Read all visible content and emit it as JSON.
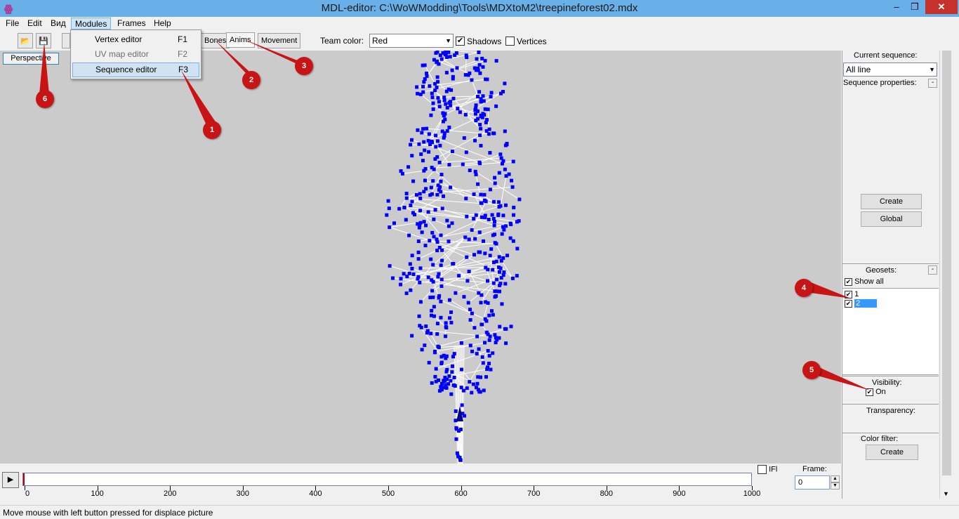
{
  "window": {
    "title": "MDL-editor: C:\\WoWModding\\Tools\\MDXtoM2\\treepineforest02.mdx",
    "app_icon": "ꙮ",
    "minimize_glyph": "–",
    "maximize_glyph": "❐",
    "close_glyph": "✕"
  },
  "menubar": {
    "items": [
      "File",
      "Edit",
      "Вид",
      "Modules",
      "Frames",
      "Help"
    ],
    "active": "Modules"
  },
  "modules_menu": {
    "items": [
      {
        "label": "Vertex editor",
        "key": "F1",
        "state": "normal"
      },
      {
        "label": "UV map editor",
        "key": "F2",
        "state": "disabled"
      },
      {
        "label": "Sequence editor",
        "key": "F3",
        "state": "highlighted"
      }
    ]
  },
  "toolbar": {
    "open_icon": "📂",
    "save_icon": "💾",
    "tabs": [
      "Bones",
      "Anims",
      "Movement"
    ],
    "selected_tab": "Anims",
    "team_color_label": "Team color:",
    "team_color_value": "Red",
    "shadows_label": "Shadows",
    "shadows_checked": true,
    "vertices_label": "Vertices",
    "vertices_checked": false
  },
  "viewport": {
    "view_button": "Perspective",
    "background": "#cbcbcb",
    "vertex_color": "#0000ff",
    "edge_color": "#ffffff"
  },
  "right_panel": {
    "current_sequence_label": "Current sequence:",
    "current_sequence_value": "All line",
    "sequence_properties_label": "Sequence properties:",
    "collapse_glyph": "-",
    "create_button": "Create",
    "global_button": "Global",
    "geosets_label": "Geosets:",
    "show_all_label": "Show all",
    "geosets": [
      {
        "name": "1",
        "checked": true,
        "selected": false
      },
      {
        "name": "2",
        "checked": true,
        "selected": true
      }
    ],
    "visibility_label": "Visibility:",
    "visibility_on_label": "On",
    "transparency_label": "Transparency:",
    "color_filter_label": "Color filter:",
    "color_filter_button": "Create"
  },
  "timeline": {
    "play_glyph": "▶",
    "ifl_label": "IFl",
    "frame_label": "Frame:",
    "frame_value": "0",
    "ticks": [
      "0",
      "100",
      "200",
      "300",
      "400",
      "500",
      "600",
      "700",
      "800",
      "900",
      "1000"
    ],
    "spin_up": "▲",
    "spin_down": "▼"
  },
  "statusbar": {
    "text": "Move mouse with left button pressed for displace  picture"
  },
  "callouts": [
    "1",
    "2",
    "3",
    "4",
    "5",
    "6"
  ],
  "colors": {
    "titlebar": "#6ab0e8",
    "close_button": "#c7312c",
    "callout": "#c81414",
    "selection": "#3399ff"
  }
}
